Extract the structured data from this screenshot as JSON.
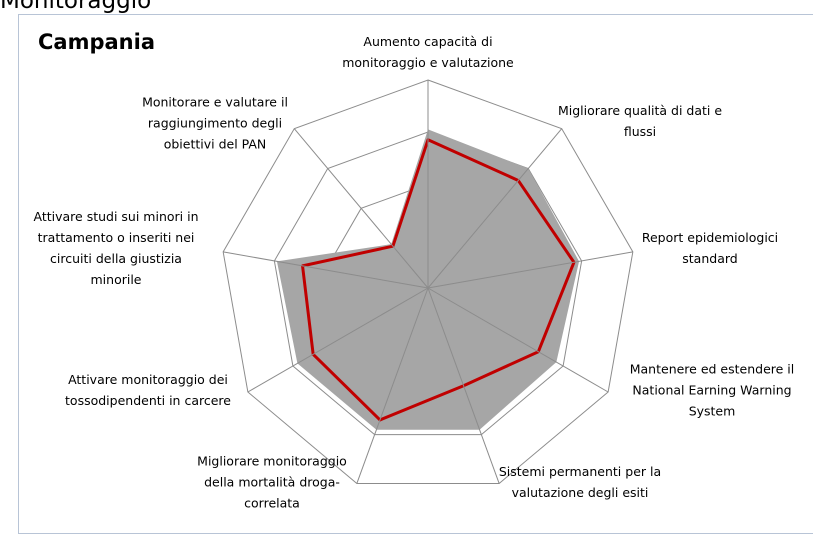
{
  "page_heading": "Monitoraggio",
  "chart_data": {
    "type": "radar",
    "title": "Campania",
    "categories": [
      "Aumento capacità di monitoraggio e valutazione",
      "Migliorare qualità di dati e flussi",
      "Report epidemiologici standard",
      "Mantenere ed estendere il National Earning Warning System",
      "Sistemi permanenti per la valutazione degli esiti",
      "Migliorare monitoraggio della mortalità droga-correlata",
      "Attivare monitoraggio dei tossodipendenti in carcere",
      "Attivare studi sui minori in trattamento o inseriti nei circuiti della giustizia minorile",
      "Monitorare e valutare il raggiungimento degli obiettivi del PAN"
    ],
    "series": [
      {
        "color": "#a6a6a6",
        "fill": true,
        "values": [
          3.05,
          3.0,
          2.95,
          2.85,
          2.9,
          2.9,
          2.9,
          2.95,
          1.1
        ]
      },
      {
        "color": "#c00000",
        "fill": false,
        "values": [
          2.85,
          2.7,
          2.85,
          2.45,
          2.0,
          2.7,
          2.55,
          2.45,
          1.05
        ]
      }
    ],
    "ylim": [
      0,
      4
    ],
    "yticks": [
      1,
      2,
      3,
      4
    ],
    "grid": true
  }
}
